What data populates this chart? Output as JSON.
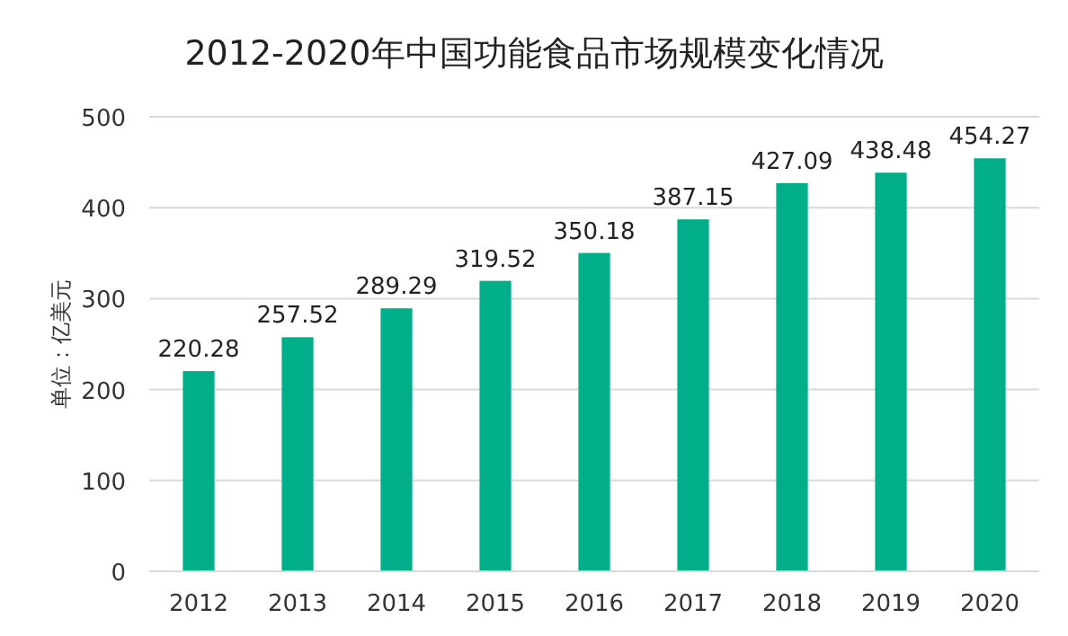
{
  "chart_data": {
    "type": "bar",
    "title": "2012-2020年中国功能食品市场规模变化情况",
    "ylabel": "单位：亿美元",
    "categories": [
      "2012",
      "2013",
      "2014",
      "2015",
      "2016",
      "2017",
      "2018",
      "2019",
      "2020"
    ],
    "values": [
      220.28,
      257.52,
      289.29,
      319.52,
      350.18,
      387.15,
      427.09,
      438.48,
      454.27
    ],
    "color": "#00ae8a",
    "ylim": [
      0,
      500
    ],
    "yticks": [
      0,
      100,
      200,
      300,
      400,
      500
    ],
    "grid": "y",
    "data_labels": true
  }
}
